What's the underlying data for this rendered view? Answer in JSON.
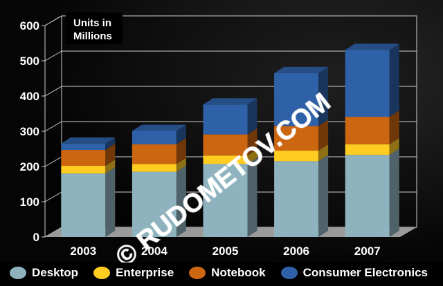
{
  "chart_data": {
    "type": "bar",
    "stacked": true,
    "categories": [
      "2003",
      "2004",
      "2005",
      "2006",
      "2007"
    ],
    "series": [
      {
        "name": "Desktop",
        "color": "#8fb3be",
        "values": [
          180,
          185,
          207,
          215,
          233
        ]
      },
      {
        "name": "Enterprise",
        "color": "#ffcc22",
        "values": [
          22,
          22,
          24,
          30,
          30
        ]
      },
      {
        "name": "Notebook",
        "color": "#cc6611",
        "values": [
          45,
          56,
          60,
          70,
          78
        ]
      },
      {
        "name": "Consumer Electronics",
        "color": "#2f61a8",
        "values": [
          18,
          38,
          85,
          150,
          190
        ]
      }
    ],
    "yticks": [
      0,
      100,
      200,
      300,
      400,
      500,
      600
    ],
    "ylim": [
      0,
      600
    ],
    "unit_label": [
      "Units in",
      "Millions"
    ],
    "watermark": "© RUDOMETOV.COM",
    "grid": true,
    "legend_position": "bottom"
  }
}
